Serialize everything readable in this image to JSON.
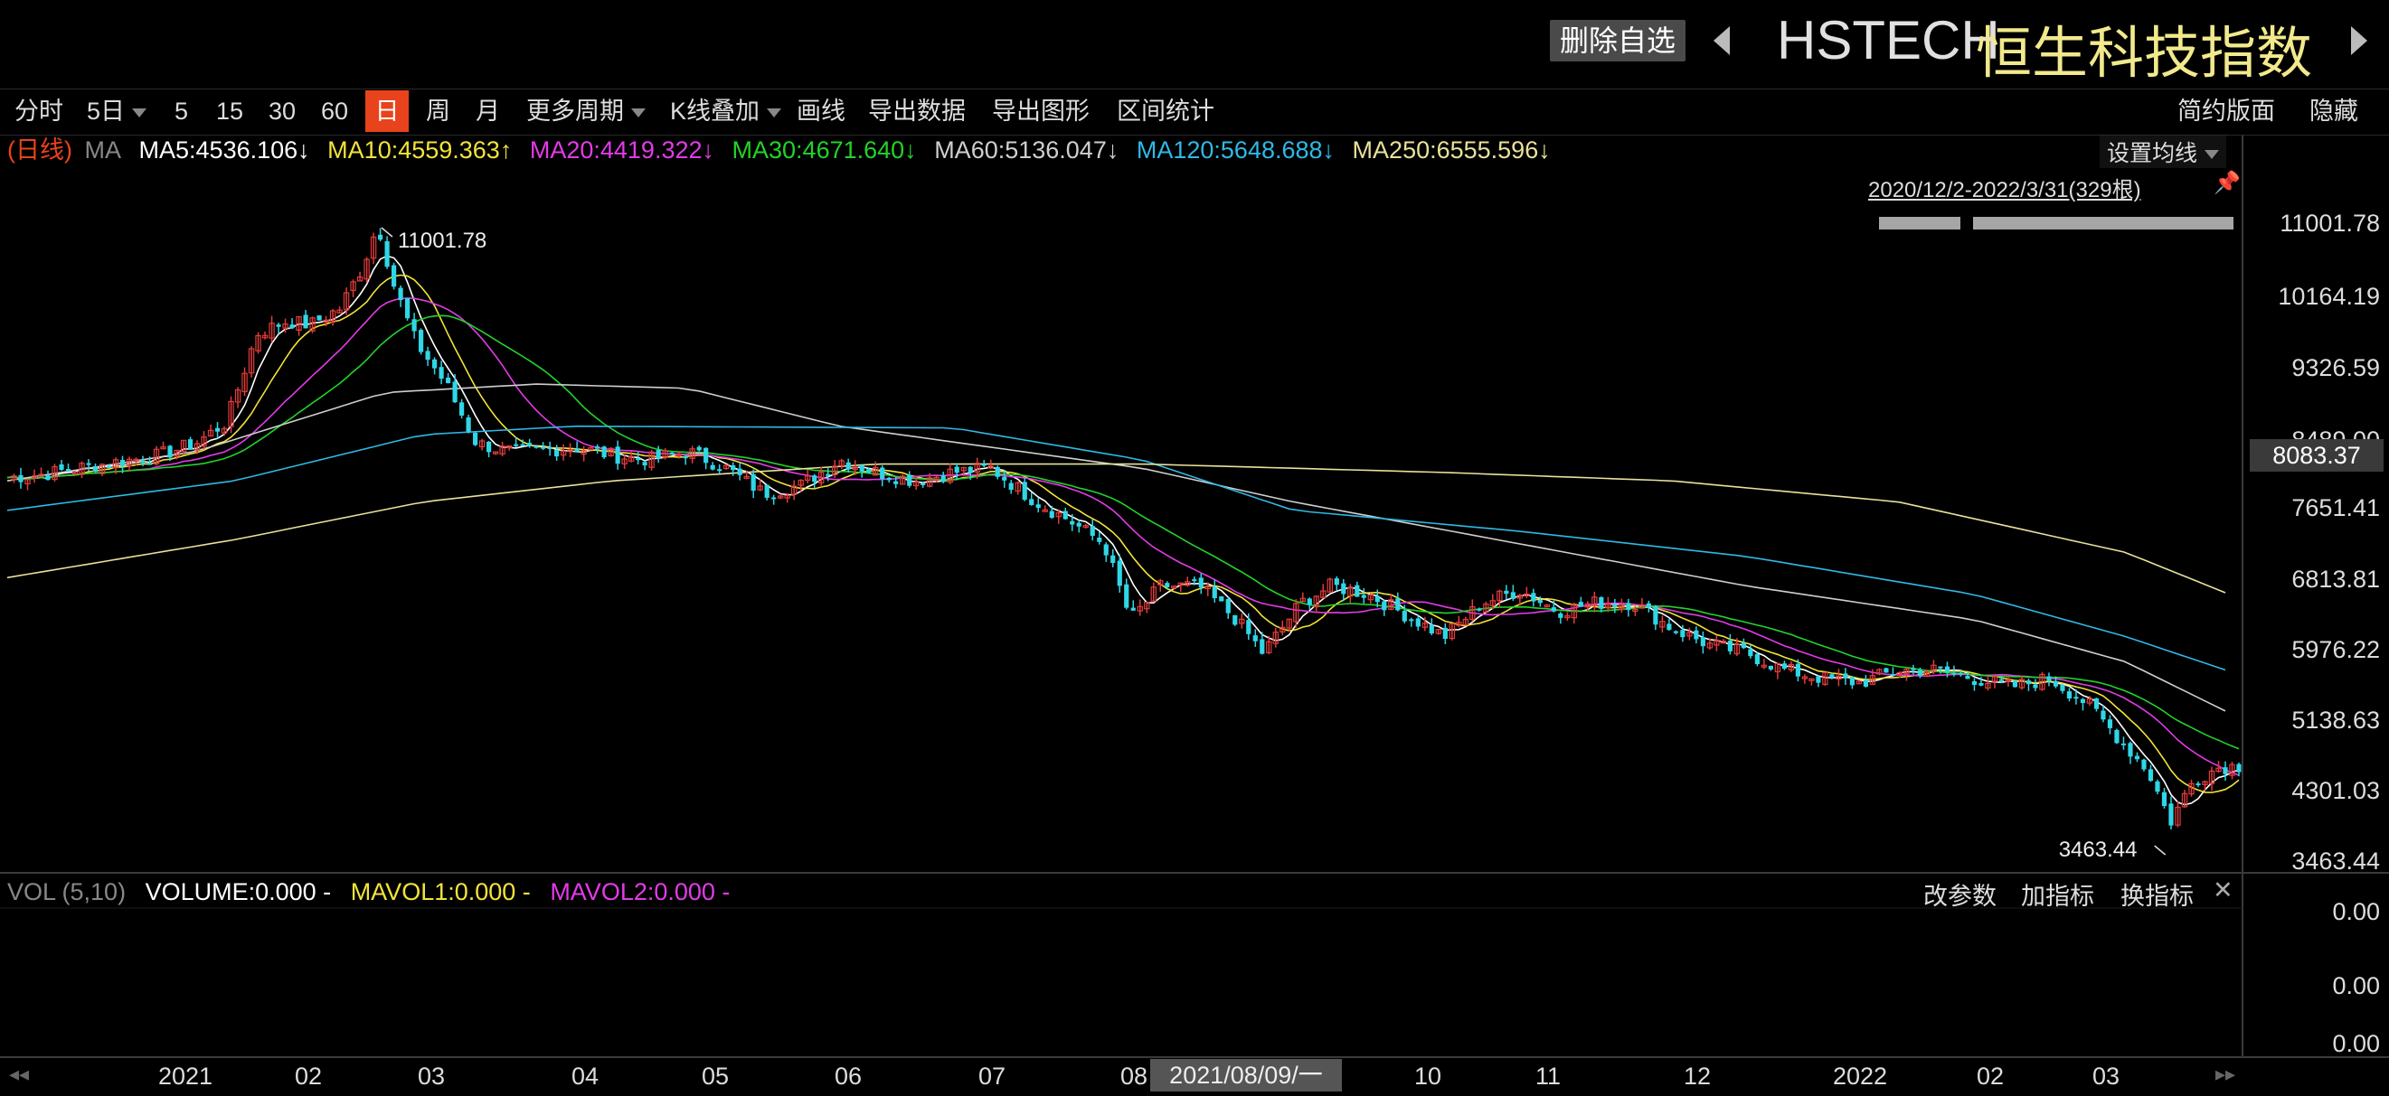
{
  "header": {
    "delete_watch_label": "删除自选",
    "symbol": "HSTECH",
    "name": "恒生科技指数"
  },
  "toolbar": {
    "items": [
      "分时",
      "5日",
      "5",
      "15",
      "30",
      "60",
      "日",
      "周",
      "月",
      "更多周期",
      "K线叠加",
      "画线",
      "导出数据",
      "导出图形",
      "区间统计"
    ],
    "active": "日",
    "right": [
      "简约版面",
      "隐藏"
    ]
  },
  "ma_legend": {
    "prefix": "(日线)",
    "ma_label": "MA",
    "items": [
      {
        "text": "MA5:4536.106↓",
        "color": "#ffffff"
      },
      {
        "text": "MA10:4559.363↑",
        "color": "#f3e33a"
      },
      {
        "text": "MA20:4419.322↓",
        "color": "#e23be8"
      },
      {
        "text": "MA30:4671.640↓",
        "color": "#22d32a"
      },
      {
        "text": "MA60:5136.047↓",
        "color": "#cfcfcf"
      },
      {
        "text": "MA120:5648.688↓",
        "color": "#2fb9e6"
      },
      {
        "text": "MA250:6555.596↓",
        "color": "#e8e29a"
      }
    ],
    "settings_label": "设置均线",
    "range_label": "2020/12/2-2022/3/31(329根)"
  },
  "price_axis": {
    "labels": [
      "11001.78",
      "10164.19",
      "9326.59",
      "8489.00",
      "7651.41",
      "6813.81",
      "5976.22",
      "5138.63",
      "4301.03",
      "3463.44"
    ],
    "current": "8083.37"
  },
  "annotations": {
    "high": "11001.78",
    "low": "3463.44"
  },
  "volume": {
    "label": "VOL (5,10)",
    "volume": "VOLUME:0.000 -",
    "mavol1": "MAVOL1:0.000 -",
    "mavol2": "MAVOL2:0.000 -",
    "buttons": [
      "改参数",
      "加指标",
      "换指标"
    ],
    "axis": [
      "0.00",
      "0.00",
      "0.00"
    ]
  },
  "x_axis": {
    "labels": [
      "2021",
      "02",
      "03",
      "04",
      "05",
      "06",
      "07",
      "08",
      "10",
      "11",
      "12",
      "2022",
      "02",
      "03"
    ],
    "cursor_date": "2021/08/09/一"
  },
  "chart_data": {
    "type": "candlestick",
    "range": "2020/12/2-2022/3/31",
    "bars": 329,
    "ylim": [
      3463.44,
      11001.78
    ],
    "high": 11001.78,
    "low": 3463.44,
    "price_path": [
      [
        0,
        7990
      ],
      [
        10,
        8030
      ],
      [
        20,
        8110
      ],
      [
        30,
        8180
      ],
      [
        40,
        8250
      ],
      [
        50,
        8400
      ],
      [
        58,
        8650
      ],
      [
        66,
        9700
      ],
      [
        74,
        9850
      ],
      [
        80,
        9800
      ],
      [
        88,
        10000
      ],
      [
        94,
        10500
      ],
      [
        98,
        11001.78
      ],
      [
        102,
        10300
      ],
      [
        108,
        9600
      ],
      [
        116,
        9100
      ],
      [
        124,
        8400
      ],
      [
        132,
        8300
      ],
      [
        140,
        8300
      ],
      [
        150,
        8350
      ],
      [
        160,
        8250
      ],
      [
        170,
        8200
      ],
      [
        180,
        8300
      ],
      [
        190,
        8100
      ],
      [
        200,
        7800
      ],
      [
        210,
        7900
      ],
      [
        220,
        8200
      ],
      [
        230,
        8050
      ],
      [
        240,
        7950
      ],
      [
        250,
        8050
      ],
      [
        260,
        8100
      ],
      [
        272,
        7700
      ],
      [
        280,
        7500
      ],
      [
        290,
        7200
      ],
      [
        297,
        6300
      ],
      [
        305,
        6700
      ],
      [
        315,
        6700
      ],
      [
        325,
        6300
      ],
      [
        332,
        5900
      ],
      [
        342,
        6500
      ],
      [
        350,
        6700
      ],
      [
        360,
        6600
      ],
      [
        370,
        6350
      ],
      [
        380,
        6100
      ],
      [
        390,
        6500
      ],
      [
        400,
        6650
      ],
      [
        410,
        6400
      ],
      [
        420,
        6500
      ],
      [
        430,
        6500
      ],
      [
        440,
        6200
      ],
      [
        450,
        6000
      ],
      [
        460,
        5900
      ],
      [
        470,
        5700
      ],
      [
        480,
        5600
      ],
      [
        490,
        5550
      ],
      [
        500,
        5700
      ],
      [
        510,
        5700
      ],
      [
        520,
        5600
      ],
      [
        530,
        5500
      ],
      [
        540,
        5600
      ],
      [
        550,
        5300
      ],
      [
        558,
        4900
      ],
      [
        566,
        4500
      ],
      [
        572,
        3900
      ],
      [
        578,
        4400
      ],
      [
        585,
        4550
      ],
      [
        590,
        4560
      ]
    ],
    "ma_series": [
      {
        "name": "MA5",
        "color": "#ffffff"
      },
      {
        "name": "MA10",
        "color": "#f3e33a"
      },
      {
        "name": "MA20",
        "color": "#e23be8"
      },
      {
        "name": "MA30",
        "color": "#22d32a"
      },
      {
        "name": "MA60",
        "color": "#cfcfcf"
      },
      {
        "name": "MA120",
        "color": "#2fb9e6"
      },
      {
        "name": "MA250",
        "color": "#e8e29a"
      }
    ],
    "ma_paths": {
      "MA60": [
        [
          0,
          7950
        ],
        [
          50,
          8300
        ],
        [
          100,
          9000
        ],
        [
          140,
          9100
        ],
        [
          180,
          9050
        ],
        [
          220,
          8600
        ],
        [
          260,
          8350
        ],
        [
          300,
          8100
        ],
        [
          340,
          7700
        ],
        [
          400,
          7200
        ],
        [
          460,
          6700
        ],
        [
          520,
          6300
        ],
        [
          560,
          5800
        ],
        [
          590,
          5136
        ]
      ],
      "MA120": [
        [
          0,
          7600
        ],
        [
          60,
          7950
        ],
        [
          110,
          8500
        ],
        [
          150,
          8600
        ],
        [
          250,
          8580
        ],
        [
          300,
          8200
        ],
        [
          340,
          7600
        ],
        [
          400,
          7350
        ],
        [
          460,
          7050
        ],
        [
          520,
          6600
        ],
        [
          560,
          6100
        ],
        [
          590,
          5649
        ]
      ],
      "MA250": [
        [
          0,
          6800
        ],
        [
          60,
          7250
        ],
        [
          110,
          7700
        ],
        [
          160,
          7950
        ],
        [
          230,
          8150
        ],
        [
          300,
          8150
        ],
        [
          380,
          8050
        ],
        [
          440,
          7950
        ],
        [
          500,
          7700
        ],
        [
          560,
          7100
        ],
        [
          590,
          6556
        ]
      ]
    },
    "colors": {
      "up": "#e23b3b",
      "down": "#2fd6e6"
    }
  }
}
